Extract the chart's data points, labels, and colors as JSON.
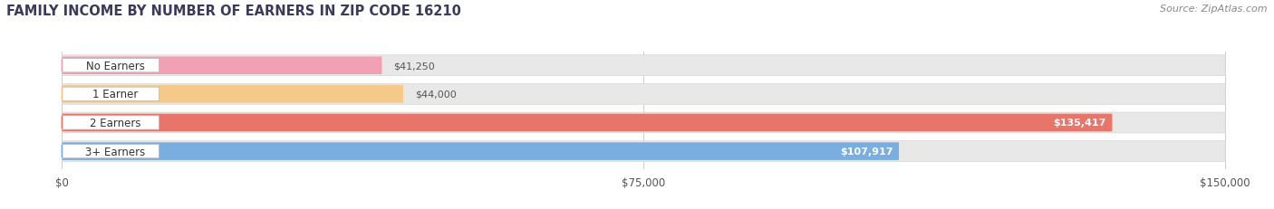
{
  "title": "FAMILY INCOME BY NUMBER OF EARNERS IN ZIP CODE 16210",
  "source": "Source: ZipAtlas.com",
  "categories": [
    "No Earners",
    "1 Earner",
    "2 Earners",
    "3+ Earners"
  ],
  "values": [
    41250,
    44000,
    135417,
    107917
  ],
  "labels": [
    "$41,250",
    "$44,000",
    "$135,417",
    "$107,917"
  ],
  "bar_colors": [
    "#f2a0b4",
    "#f5c98a",
    "#e8756a",
    "#7aade0"
  ],
  "track_color": "#e8e8e8",
  "track_edge_color": "#d5d5d5",
  "xlim": [
    0,
    150000
  ],
  "xticks": [
    0,
    75000,
    150000
  ],
  "xticklabels": [
    "$0",
    "$75,000",
    "$150,000"
  ],
  "bg_color": "#ffffff",
  "title_fontsize": 10.5,
  "source_fontsize": 8,
  "bar_label_fontsize": 8,
  "category_fontsize": 8.5,
  "tick_fontsize": 8.5
}
